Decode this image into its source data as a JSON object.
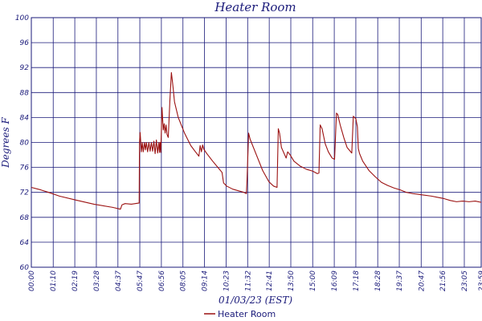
{
  "chart_data": {
    "type": "line",
    "title": "Heater Room",
    "xlabel": "01/03/23 (EST)",
    "ylabel": "Degrees F",
    "ylim": [
      60,
      100
    ],
    "yticks": [
      60,
      64,
      68,
      72,
      76,
      80,
      84,
      88,
      92,
      96,
      100
    ],
    "xlim": [
      0,
      1439
    ],
    "xticks": [
      {
        "label": "00:00",
        "x": 0
      },
      {
        "label": "01:10",
        "x": 70
      },
      {
        "label": "02:19",
        "x": 139
      },
      {
        "label": "03:28",
        "x": 208
      },
      {
        "label": "04:37",
        "x": 277
      },
      {
        "label": "05:47",
        "x": 347
      },
      {
        "label": "06:56",
        "x": 416
      },
      {
        "label": "08:05",
        "x": 485
      },
      {
        "label": "09:14",
        "x": 554
      },
      {
        "label": "10:23",
        "x": 623
      },
      {
        "label": "11:32",
        "x": 692
      },
      {
        "label": "12:41",
        "x": 761
      },
      {
        "label": "13:50",
        "x": 830
      },
      {
        "label": "15:00",
        "x": 900
      },
      {
        "label": "16:09",
        "x": 969
      },
      {
        "label": "17:18",
        "x": 1038
      },
      {
        "label": "18:28",
        "x": 1108
      },
      {
        "label": "19:37",
        "x": 1177
      },
      {
        "label": "20:47",
        "x": 1247
      },
      {
        "label": "21:56",
        "x": 1316
      },
      {
        "label": "23:05",
        "x": 1385
      },
      {
        "label": "23:59",
        "x": 1439
      }
    ],
    "grid": true,
    "legend": "bottom-center",
    "series": [
      {
        "name": "Heater Room",
        "color": "#9b1111",
        "points": [
          [
            0,
            72.8
          ],
          [
            30,
            72.4
          ],
          [
            55,
            72.0
          ],
          [
            90,
            71.4
          ],
          [
            140,
            70.8
          ],
          [
            200,
            70.1
          ],
          [
            260,
            69.6
          ],
          [
            285,
            69.3
          ],
          [
            290,
            70.0
          ],
          [
            300,
            70.2
          ],
          [
            320,
            70.1
          ],
          [
            345,
            70.3
          ],
          [
            346,
            80
          ],
          [
            348,
            81.6
          ],
          [
            352,
            78.5
          ],
          [
            355,
            80
          ],
          [
            358,
            78.5
          ],
          [
            362,
            80
          ],
          [
            365,
            78.8
          ],
          [
            368,
            80
          ],
          [
            372,
            78.5
          ],
          [
            376,
            80
          ],
          [
            380,
            78.6
          ],
          [
            384,
            80
          ],
          [
            388,
            78.6
          ],
          [
            392,
            80.2
          ],
          [
            396,
            78.2
          ],
          [
            400,
            80.4
          ],
          [
            404,
            78.3
          ],
          [
            408,
            80
          ],
          [
            410,
            78.4
          ],
          [
            412,
            80
          ],
          [
            414,
            78.4
          ],
          [
            418,
            85.6
          ],
          [
            422,
            82
          ],
          [
            425,
            83
          ],
          [
            428,
            81.5
          ],
          [
            431,
            82.8
          ],
          [
            434,
            81.3
          ],
          [
            438,
            80.8
          ],
          [
            443,
            86.5
          ],
          [
            448,
            91.2
          ],
          [
            452,
            89.5
          ],
          [
            458,
            86.5
          ],
          [
            470,
            84
          ],
          [
            490,
            81.5
          ],
          [
            510,
            79.5
          ],
          [
            525,
            78.5
          ],
          [
            536,
            77.8
          ],
          [
            540,
            79.5
          ],
          [
            544,
            78.5
          ],
          [
            548,
            79.6
          ],
          [
            552,
            78.9
          ],
          [
            560,
            78.3
          ],
          [
            580,
            77
          ],
          [
            600,
            75.8
          ],
          [
            610,
            75.2
          ],
          [
            615,
            73.5
          ],
          [
            625,
            73
          ],
          [
            645,
            72.5
          ],
          [
            680,
            72.0
          ],
          [
            688,
            71.8
          ],
          [
            690,
            74
          ],
          [
            695,
            81.5
          ],
          [
            700,
            80.5
          ],
          [
            720,
            78
          ],
          [
            740,
            75.5
          ],
          [
            760,
            73.7
          ],
          [
            775,
            73.0
          ],
          [
            786,
            72.8
          ],
          [
            790,
            82.2
          ],
          [
            794,
            81.5
          ],
          [
            800,
            79.2
          ],
          [
            815,
            77.5
          ],
          [
            820,
            78.5
          ],
          [
            828,
            78
          ],
          [
            840,
            77
          ],
          [
            860,
            76.2
          ],
          [
            880,
            75.7
          ],
          [
            900,
            75.4
          ],
          [
            915,
            75.0
          ],
          [
            920,
            75.1
          ],
          [
            924,
            82.8
          ],
          [
            930,
            82.2
          ],
          [
            940,
            79.8
          ],
          [
            950,
            78.5
          ],
          [
            962,
            77.5
          ],
          [
            970,
            77.3
          ],
          [
            976,
            84.7
          ],
          [
            980,
            84.5
          ],
          [
            988,
            82.8
          ],
          [
            1000,
            80.7
          ],
          [
            1010,
            79.2
          ],
          [
            1020,
            78.6
          ],
          [
            1025,
            78.3
          ],
          [
            1030,
            84.2
          ],
          [
            1038,
            83.8
          ],
          [
            1043,
            82.5
          ],
          [
            1046,
            79
          ],
          [
            1050,
            78.2
          ],
          [
            1060,
            77
          ],
          [
            1080,
            75.5
          ],
          [
            1100,
            74.5
          ],
          [
            1120,
            73.6
          ],
          [
            1140,
            73.1
          ],
          [
            1160,
            72.7
          ],
          [
            1180,
            72.4
          ],
          [
            1200,
            72.0
          ],
          [
            1220,
            71.8
          ],
          [
            1250,
            71.6
          ],
          [
            1280,
            71.4
          ],
          [
            1300,
            71.2
          ],
          [
            1320,
            71.0
          ],
          [
            1340,
            70.7
          ],
          [
            1360,
            70.5
          ],
          [
            1380,
            70.6
          ],
          [
            1400,
            70.5
          ],
          [
            1420,
            70.6
          ],
          [
            1439,
            70.4
          ]
        ]
      }
    ]
  }
}
